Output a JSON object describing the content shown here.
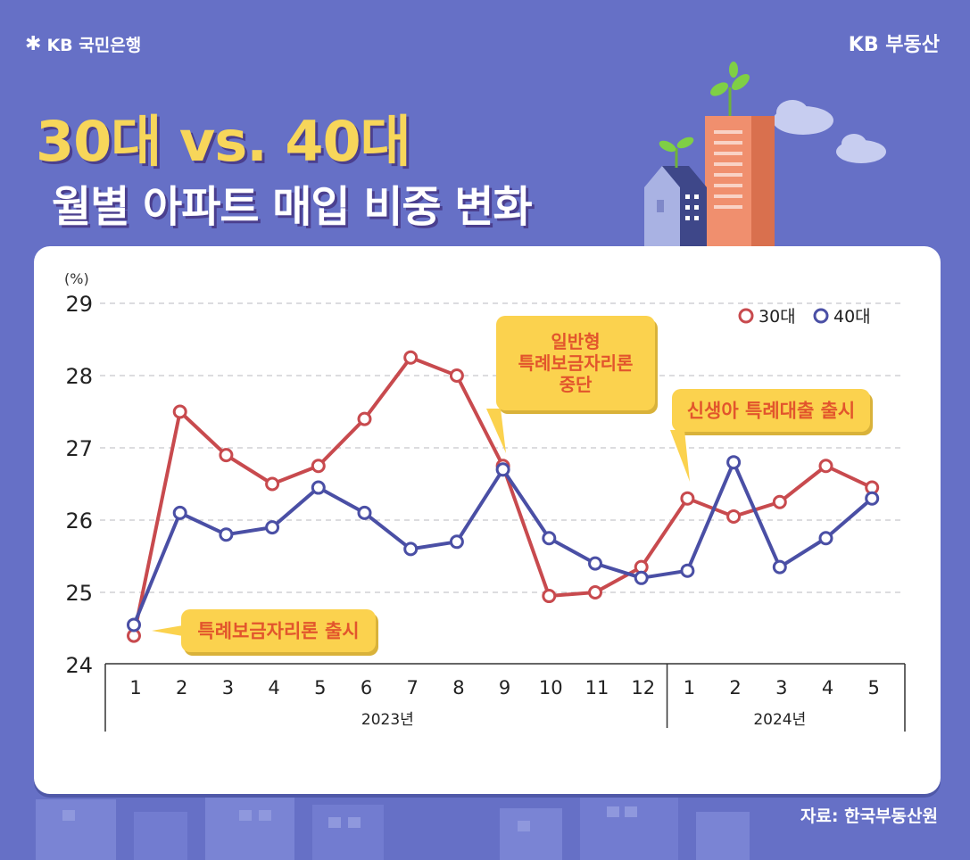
{
  "brand": {
    "left": "KB 국민은행",
    "left_mark": "✱",
    "right": "KB 부동산"
  },
  "title": {
    "line1": "30대 vs. 40대",
    "line2": "월별 아파트 매입 비중 변화"
  },
  "source": "자료: 한국부동산원",
  "colors": {
    "background": "#6670c6",
    "title_yellow": "#f7d65a",
    "series_30": "#c84a4e",
    "series_40": "#4a4fa5",
    "callout_fill": "#fbd24e",
    "callout_text": "#e2552c"
  },
  "chart_data": {
    "type": "line",
    "ylabel": "(%)",
    "ylim": [
      24,
      29
    ],
    "yticks": [
      "24",
      "25",
      "26",
      "27",
      "28",
      "29"
    ],
    "x": [
      "1",
      "2",
      "3",
      "4",
      "5",
      "6",
      "7",
      "8",
      "9",
      "10",
      "11",
      "12",
      "1",
      "2",
      "3",
      "4",
      "5"
    ],
    "year_groups": [
      {
        "label": "2023년",
        "count": 12
      },
      {
        "label": "2024년",
        "count": 5
      }
    ],
    "series": [
      {
        "name": "30대",
        "values": [
          24.4,
          27.5,
          26.9,
          26.5,
          26.75,
          27.4,
          28.25,
          28.0,
          26.75,
          24.95,
          25.0,
          25.35,
          26.3,
          26.05,
          26.25,
          26.75,
          26.45
        ]
      },
      {
        "name": "40대",
        "values": [
          24.55,
          26.1,
          25.8,
          25.9,
          26.45,
          26.1,
          25.6,
          25.7,
          26.7,
          25.75,
          25.4,
          25.2,
          25.3,
          26.8,
          25.35,
          25.75,
          26.3
        ]
      }
    ],
    "legend_position": "top-right",
    "grid": "dashed horizontal",
    "annotations": [
      {
        "text": "특례보금자리론 출시",
        "x_index": 0
      },
      {
        "text": "일반형\n특례보금자리론\n중단",
        "x_index": 8
      },
      {
        "text": "신생아 특례대출 출시",
        "x_index": 12
      }
    ]
  }
}
